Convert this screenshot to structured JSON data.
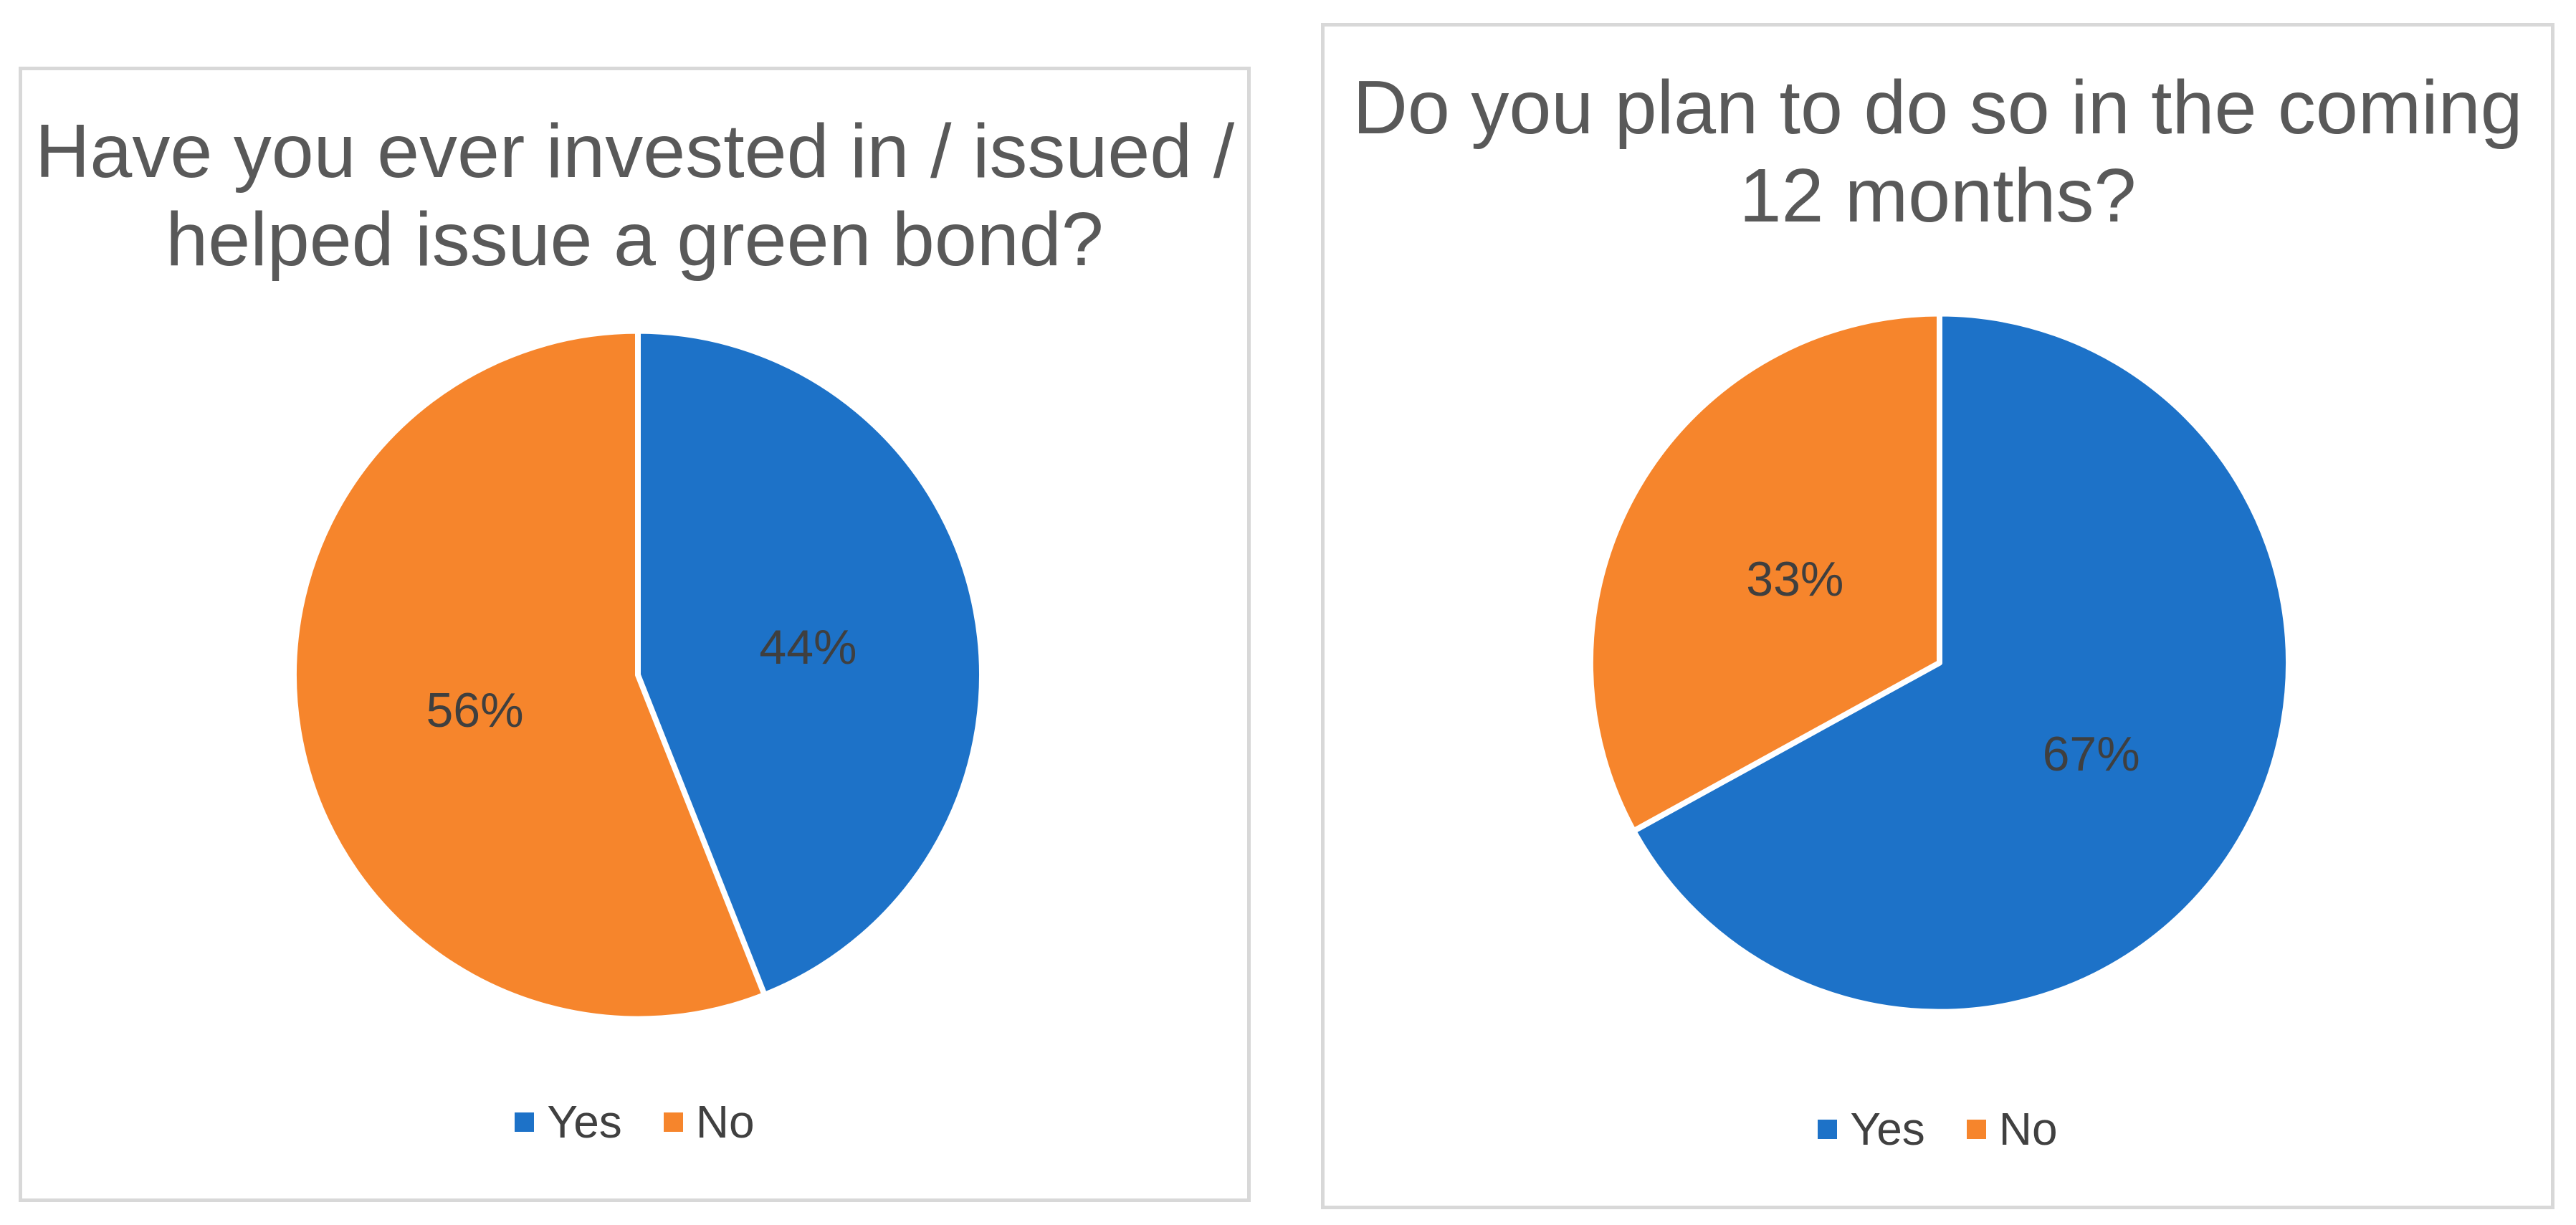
{
  "chart_data": [
    {
      "type": "pie",
      "title": "Have you ever invested in / issued / helped issue a green bond?",
      "title_lines": [
        "Have you ever invested in / issued /",
        "helped issue a green bond?"
      ],
      "labels": [
        "Yes",
        "No"
      ],
      "values": [
        44,
        56
      ],
      "data_labels": [
        "44%",
        "56%"
      ],
      "unit": "percent",
      "colors": [
        "#1D72C8",
        "#F6852C"
      ],
      "title_color": "#595959",
      "data_label_color": "#3F3F3F",
      "legend_position": "bottom",
      "start_angle_deg": 0,
      "direction": "clockwise"
    },
    {
      "type": "pie",
      "title": "Do you plan to do so in the coming 12 months?",
      "title_lines": [
        "Do you plan to do so in the coming",
        "12 months?"
      ],
      "labels": [
        "Yes",
        "No"
      ],
      "values": [
        67,
        33
      ],
      "data_labels": [
        "67%",
        "33%"
      ],
      "unit": "percent",
      "colors": [
        "#1D72C8",
        "#F6852C"
      ],
      "title_color": "#595959",
      "data_label_color": "#3F3F3F",
      "legend_position": "bottom",
      "start_angle_deg": 0,
      "direction": "clockwise"
    }
  ],
  "styles": {
    "panel_border_color": "#D8D8D8",
    "slice_border_color": "#FFFFFF"
  }
}
